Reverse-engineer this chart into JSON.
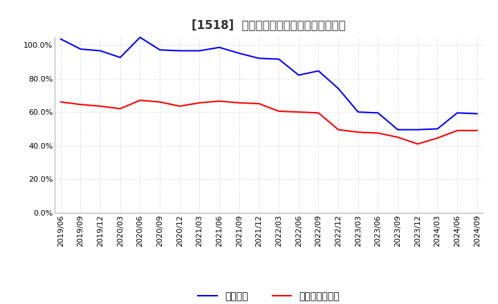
{
  "title": "[1518]  固定比率、固定長期適合率の推移",
  "fixed_ratio": {
    "dates": [
      "2019/06",
      "2019/09",
      "2019/12",
      "2020/03",
      "2020/06",
      "2020/09",
      "2020/12",
      "2021/03",
      "2021/06",
      "2021/09",
      "2021/12",
      "2022/03",
      "2022/06",
      "2022/09",
      "2022/12",
      "2023/03",
      "2023/06",
      "2023/09",
      "2023/12",
      "2024/03",
      "2024/06",
      "2024/09"
    ],
    "values": [
      103.5,
      97.5,
      96.5,
      92.5,
      104.5,
      97.0,
      96.5,
      96.5,
      98.5,
      95.0,
      92.0,
      91.5,
      82.0,
      84.5,
      74.0,
      60.0,
      59.5,
      49.5,
      49.5,
      50.0,
      59.5,
      59.0
    ],
    "color": "#0000ff"
  },
  "fixed_long_ratio": {
    "dates": [
      "2019/06",
      "2019/09",
      "2019/12",
      "2020/03",
      "2020/06",
      "2020/09",
      "2020/12",
      "2021/03",
      "2021/06",
      "2021/09",
      "2021/12",
      "2022/03",
      "2022/06",
      "2022/09",
      "2022/12",
      "2023/03",
      "2023/06",
      "2023/09",
      "2023/12",
      "2024/03",
      "2024/06",
      "2024/09"
    ],
    "values": [
      66.0,
      64.5,
      63.5,
      62.0,
      67.0,
      66.0,
      63.5,
      65.5,
      66.5,
      65.5,
      65.0,
      60.5,
      60.0,
      59.5,
      49.5,
      48.0,
      47.5,
      45.0,
      41.0,
      44.5,
      49.0,
      49.0
    ],
    "color": "#ff0000"
  },
  "ylim": [
    0,
    105
  ],
  "yticks": [
    0,
    20,
    40,
    60,
    80,
    100
  ],
  "background_color": "#ffffff",
  "plot_bg_color": "#ffffff",
  "grid_color": "#bbbbbb",
  "legend_labels": [
    "固定比率",
    "固定長期適合率"
  ],
  "title_fontsize": 12,
  "tick_fontsize": 8,
  "legend_fontsize": 10
}
